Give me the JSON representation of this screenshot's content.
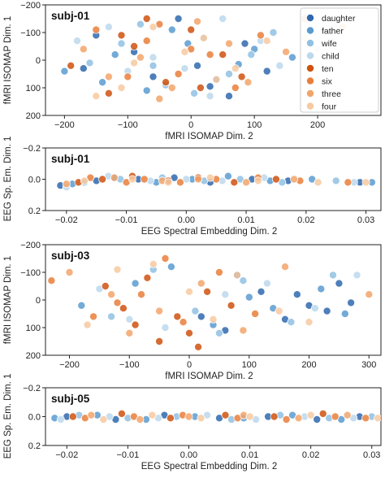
{
  "chart_data": [
    {
      "type": "scatter",
      "title": "subj-01",
      "xlabel": "fMRI ISOMAP Dim. 2",
      "ylabel": "fMRI ISOMAP Dim. 1",
      "xlim": [
        -230,
        300
      ],
      "ylim": [
        200,
        -200
      ],
      "y_inverted": true,
      "xticks": [
        -200,
        -100,
        0,
        100,
        200
      ],
      "xtick_labels": [
        "−200",
        "−100",
        "0",
        "100",
        "200"
      ],
      "yticks": [
        -200,
        -100,
        0,
        100,
        200
      ],
      "ytick_labels": [
        "−200",
        "−100",
        "0",
        "100",
        "200"
      ],
      "grid": false,
      "legend_position": "top-right",
      "series": [
        {
          "name": "daughter",
          "x": [
            -150,
            -60,
            10,
            60,
            -90,
            120,
            -20,
            30,
            -170,
            85
          ],
          "y": [
            -90,
            60,
            20,
            130,
            -30,
            40,
            -150,
            95,
            30,
            -60
          ]
        },
        {
          "name": "father",
          "x": [
            -120,
            -30,
            40,
            100,
            -200,
            -70,
            75,
            -5,
            160,
            -140
          ],
          "y": [
            -20,
            -110,
            70,
            -40,
            40,
            110,
            15,
            -60,
            -10,
            80
          ]
        },
        {
          "name": "wife",
          "x": [
            -80,
            20,
            -160,
            60,
            -40,
            130,
            -110,
            5,
            95,
            -60
          ],
          "y": [
            -130,
            -80,
            10,
            50,
            90,
            -100,
            -60,
            120,
            -20,
            20
          ]
        },
        {
          "name": "child",
          "x": [
            -100,
            50,
            -180,
            -10,
            110,
            -60,
            30,
            140,
            -130,
            200
          ],
          "y": [
            40,
            -150,
            -70,
            30,
            -70,
            -10,
            130,
            20,
            -120,
            -40
          ]
        },
        {
          "name": "ten",
          "x": [
            -190,
            -90,
            0,
            80,
            -130,
            -40,
            50,
            -70,
            15,
            -110
          ],
          "y": [
            20,
            -50,
            -110,
            60,
            120,
            80,
            -20,
            -150,
            100,
            -90
          ]
        },
        {
          "name": "six",
          "x": [
            -70,
            30,
            -150,
            110,
            -20,
            -100,
            70,
            180,
            -50,
            0
          ],
          "y": [
            -70,
            -20,
            -110,
            -90,
            50,
            60,
            100,
            -150,
            -130,
            -40
          ]
        },
        {
          "name": "three",
          "x": [
            -130,
            -30,
            60,
            -80,
            150,
            10,
            -170,
            90,
            -50,
            240
          ],
          "y": [
            60,
            100,
            -60,
            -10,
            -30,
            -140,
            -40,
            80,
            140,
            -120
          ]
        },
        {
          "name": "four",
          "x": [
            -110,
            -10,
            70,
            -60,
            20,
            120,
            -150,
            40,
            180,
            -90
          ],
          "y": [
            100,
            -30,
            30,
            -120,
            -80,
            -70,
            130,
            70,
            -80,
            10
          ]
        }
      ]
    },
    {
      "type": "scatter",
      "title": "subj-01",
      "xlabel": "EEG Spectral Embedding Dim. 2",
      "ylabel": "EEG Sp. Em. Dim. 1",
      "xlim": [
        -0.0235,
        0.0325
      ],
      "ylim": [
        0.2,
        -0.2
      ],
      "y_inverted": true,
      "xticks": [
        -0.02,
        -0.01,
        0.0,
        0.01,
        0.02,
        0.03
      ],
      "xtick_labels": [
        "−0.02",
        "−0.01",
        "0.00",
        "0.01",
        "0.02",
        "0.03"
      ],
      "yticks": [
        -0.2,
        0.0,
        0.2
      ],
      "ytick_labels": [
        "−0.2",
        "0.0",
        "0.2"
      ],
      "grid": false,
      "series": [
        {
          "name": "daughter",
          "x": [
            -0.021,
            -0.015,
            -0.008,
            -0.002,
            0.004,
            0.011,
            0.017,
            0.029
          ],
          "y": [
            0.04,
            0.01,
            0.0,
            -0.01,
            0.02,
            0.0,
            0.01,
            0.02
          ]
        },
        {
          "name": "father",
          "x": [
            -0.019,
            -0.012,
            -0.005,
            0.001,
            0.007,
            0.014,
            0.021,
            0.031
          ],
          "y": [
            0.03,
            -0.01,
            0.02,
            0.0,
            -0.02,
            0.01,
            0.0,
            0.02
          ]
        },
        {
          "name": "wife",
          "x": [
            -0.017,
            -0.011,
            -0.004,
            0.003,
            0.009,
            0.016,
            0.025
          ],
          "y": [
            0.02,
            0.0,
            -0.01,
            0.01,
            0.0,
            0.02,
            0.01
          ]
        },
        {
          "name": "child",
          "x": [
            -0.02,
            -0.013,
            -0.006,
            0.0,
            0.006,
            0.013,
            0.028
          ],
          "y": [
            0.05,
            -0.02,
            0.01,
            0.0,
            0.01,
            -0.01,
            0.02
          ]
        },
        {
          "name": "ten",
          "x": [
            -0.018,
            -0.014,
            -0.009,
            -0.003,
            0.002,
            0.008,
            0.015
          ],
          "y": [
            0.02,
            0.0,
            -0.02,
            0.01,
            -0.01,
            0.02,
            0.0
          ]
        },
        {
          "name": "six",
          "x": [
            -0.016,
            -0.01,
            -0.007,
            -0.001,
            0.005,
            0.012,
            0.019,
            0.027
          ],
          "y": [
            -0.01,
            0.02,
            0.0,
            0.02,
            0.0,
            -0.01,
            0.01,
            0.02
          ]
        },
        {
          "name": "three",
          "x": [
            -0.02,
            -0.012,
            -0.004,
            0.002,
            0.01,
            0.018
          ],
          "y": [
            0.03,
            -0.01,
            0.01,
            0.0,
            0.02,
            0.0
          ]
        },
        {
          "name": "four",
          "x": [
            -0.017,
            -0.009,
            -0.003,
            0.004,
            0.012,
            0.022,
            0.03
          ],
          "y": [
            0.01,
            0.0,
            0.02,
            -0.01,
            0.01,
            0.02,
            0.02
          ]
        }
      ]
    },
    {
      "type": "scatter",
      "title": "subj-03",
      "xlabel": "fMRI ISOMAP Dim. 2",
      "ylabel": "fMRI ISOMAP Dim. 1",
      "xlim": [
        -240,
        320
      ],
      "ylim": [
        200,
        -200
      ],
      "y_inverted": true,
      "xticks": [
        -200,
        -100,
        0,
        100,
        200,
        300
      ],
      "xtick_labels": [
        "−200",
        "−100",
        "0",
        "100",
        "200",
        "300"
      ],
      "yticks": [
        -200,
        -100,
        0,
        100,
        200
      ],
      "ytick_labels": [
        "−200",
        "−100",
        "0",
        "100",
        "200"
      ],
      "grid": false,
      "series": [
        {
          "name": "daughter",
          "x": [
            20,
            120,
            200,
            250,
            160,
            80,
            230,
            180,
            270,
            60
          ],
          "y": [
            60,
            -30,
            20,
            -60,
            70,
            -90,
            40,
            -20,
            10,
            110
          ]
        },
        {
          "name": "father",
          "x": [
            -180,
            -90,
            40,
            140,
            220,
            -30,
            100,
            260
          ],
          "y": [
            20,
            -60,
            90,
            30,
            -40,
            -120,
            -10,
            50
          ]
        },
        {
          "name": "wife",
          "x": [
            -60,
            10,
            90,
            170,
            -130,
            240,
            50
          ],
          "y": [
            -110,
            40,
            -70,
            80,
            60,
            -90,
            120
          ]
        },
        {
          "name": "child",
          "x": [
            -150,
            -40,
            60,
            130,
            210,
            -100,
            280
          ],
          "y": [
            -40,
            100,
            -20,
            -60,
            30,
            70,
            -90
          ]
        },
        {
          "name": "ten",
          "x": [
            -110,
            -70,
            -20,
            30,
            -140,
            0,
            -50,
            70,
            15,
            -90
          ],
          "y": [
            30,
            -80,
            60,
            -30,
            -50,
            120,
            150,
            20,
            170,
            90
          ]
        },
        {
          "name": "six",
          "x": [
            -230,
            -160,
            -80,
            -10,
            50,
            -120,
            110,
            -40
          ],
          "y": [
            -70,
            60,
            -20,
            80,
            -100,
            10,
            50,
            -150
          ]
        },
        {
          "name": "three",
          "x": [
            -200,
            -130,
            -50,
            20,
            90,
            160,
            -100,
            300
          ],
          "y": [
            -100,
            -20,
            40,
            -60,
            110,
            -120,
            120,
            -20
          ]
        },
        {
          "name": "four",
          "x": [
            -170,
            -60,
            0,
            80,
            150,
            -120,
            40,
            200
          ],
          "y": [
            90,
            -130,
            -30,
            -90,
            40,
            -110,
            70,
            80
          ]
        }
      ]
    },
    {
      "type": "scatter",
      "title": "subj-05",
      "xlabel": "EEG Spectral Embedding Dim. 2",
      "ylabel": "EEG Sp. Em. Dim. 1",
      "xlim": [
        -0.0235,
        0.0315
      ],
      "ylim": [
        0.2,
        -0.2
      ],
      "y_inverted": true,
      "xticks": [
        -0.02,
        -0.01,
        0.0,
        0.01,
        0.02,
        0.03
      ],
      "xtick_labels": [
        "−0.02",
        "−0.01",
        "0.00",
        "0.01",
        "0.02",
        "0.03"
      ],
      "yticks": [
        -0.2,
        0.0,
        0.2
      ],
      "ytick_labels": [
        "−0.2",
        "0.0",
        "0.2"
      ],
      "grid": false,
      "series": [
        {
          "name": "daughter",
          "x": [
            -0.02,
            -0.012,
            -0.004,
            0.005,
            0.013,
            0.021,
            0.028
          ],
          "y": [
            0.0,
            0.02,
            -0.01,
            0.01,
            0.0,
            0.02,
            0.0
          ]
        },
        {
          "name": "father",
          "x": [
            -0.022,
            -0.015,
            -0.007,
            0.001,
            0.009,
            0.017,
            0.025
          ],
          "y": [
            0.01,
            -0.01,
            0.02,
            0.0,
            0.01,
            -0.01,
            0.02
          ]
        },
        {
          "name": "wife",
          "x": [
            -0.018,
            -0.01,
            -0.002,
            0.007,
            0.015,
            0.023,
            0.03
          ],
          "y": [
            -0.01,
            0.01,
            0.0,
            0.02,
            -0.01,
            0.01,
            0.0
          ]
        },
        {
          "name": "child",
          "x": [
            -0.021,
            -0.013,
            -0.005,
            0.003,
            0.011,
            0.019,
            0.027
          ],
          "y": [
            0.02,
            0.0,
            0.01,
            -0.01,
            0.02,
            0.0,
            0.01
          ]
        },
        {
          "name": "ten",
          "x": [
            -0.019,
            -0.011,
            -0.003,
            0.006,
            0.014,
            0.022
          ],
          "y": [
            0.0,
            -0.02,
            0.01,
            -0.01,
            0.0,
            -0.02
          ]
        },
        {
          "name": "six",
          "x": [
            -0.017,
            -0.009,
            -0.001,
            0.008,
            0.016,
            0.024,
            0.029
          ],
          "y": [
            0.01,
            0.0,
            -0.01,
            0.01,
            0.02,
            0.0,
            0.01
          ]
        },
        {
          "name": "three",
          "x": [
            -0.016,
            -0.008,
            0.0,
            0.009,
            0.018,
            0.026
          ],
          "y": [
            -0.01,
            0.02,
            0.0,
            -0.01,
            0.01,
            -0.01
          ]
        },
        {
          "name": "four",
          "x": [
            -0.014,
            -0.006,
            0.002,
            0.01,
            0.02,
            0.031
          ],
          "y": [
            0.02,
            -0.01,
            0.01,
            0.0,
            -0.01,
            0.01
          ]
        }
      ]
    }
  ],
  "legend": {
    "entries": [
      "daughter",
      "father",
      "wife",
      "child",
      "ten",
      "six",
      "three",
      "four"
    ],
    "colors": [
      "#2f68ae",
      "#5a9bd0",
      "#8fc1e3",
      "#bcd8ec",
      "#cf520f",
      "#e97f3b",
      "#f2a56b",
      "#f7c9a0"
    ]
  }
}
